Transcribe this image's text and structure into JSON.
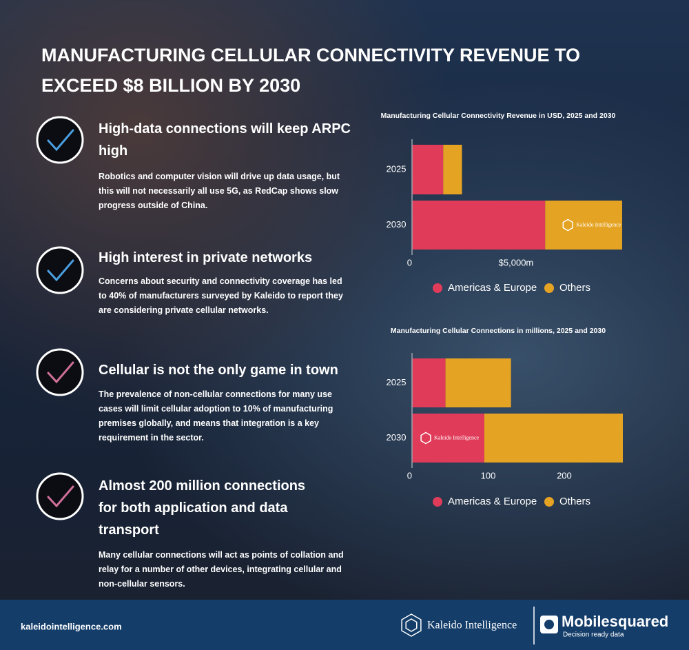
{
  "title": "MANUFACTURING CELLULAR CONNECTIVITY REVENUE TO EXCEED $8 BILLION BY 2030",
  "points": [
    {
      "heading": "High-data connections will keep ARPC high",
      "body": "Robotics and computer vision will drive up data usage, but this will not necessarily all use 5G, as RedCap shows slow progress outside of China.",
      "color": "#4a9fe0"
    },
    {
      "heading": "High interest in private networks",
      "body": "Concerns about security and connectivity coverage has led to 40% of manufacturers surveyed by Kaleido to report they are considering private cellular networks.",
      "color": "#4a9fe0"
    },
    {
      "heading": "Cellular is not the only game in town",
      "body": "The prevalence of non-cellular connections for many use cases will limit cellular adoption to 10% of manufacturing premises globally, and means that integration is a key requirement in the sector.",
      "color": "#d0709a"
    },
    {
      "heading": "Almost 200 million connections for both application and data transport",
      "body": "Many cellular connections will act as points of collation and relay for a number of other devices, integrating cellular and non-cellular sensors.",
      "color": "#d0709a"
    }
  ],
  "chart_data": [
    {
      "type": "bar",
      "orientation": "horizontal",
      "stacked": true,
      "title": "Manufacturing Cellular Connectivity Revenue in USD, 2025 and 2030",
      "categories": [
        "2025",
        "2030"
      ],
      "series": [
        {
          "name": "Americas & Europe",
          "color": "#e03c5a",
          "values": [
            1500,
            6400
          ]
        },
        {
          "name": "Others",
          "color": "#e5a323",
          "values": [
            900,
            3700
          ]
        }
      ],
      "xlim": [
        0,
        10200
      ],
      "xticks": [
        0,
        {
          "value": 5000,
          "label": "$5,000m"
        }
      ],
      "legend": "bottom"
    },
    {
      "type": "bar",
      "orientation": "horizontal",
      "stacked": true,
      "title": "Manufacturing Cellular Connections in millions, 2025 and 2030",
      "categories": [
        "2025",
        "2030"
      ],
      "series": [
        {
          "name": "Americas & Europe",
          "color": "#e03c5a",
          "values": [
            44,
            95
          ]
        },
        {
          "name": "Others",
          "color": "#e5a323",
          "values": [
            86,
            182
          ]
        }
      ],
      "xlim": [
        0,
        277
      ],
      "xticks": [
        0,
        100,
        200
      ],
      "legend": "bottom"
    }
  ],
  "watermark": "Kaleido Intelligence",
  "footer": {
    "url": "kaleidointelligence.com",
    "brand": "Kaleido Intelligence",
    "partner": "Mobilesquared",
    "tagline": "Decision ready data"
  }
}
